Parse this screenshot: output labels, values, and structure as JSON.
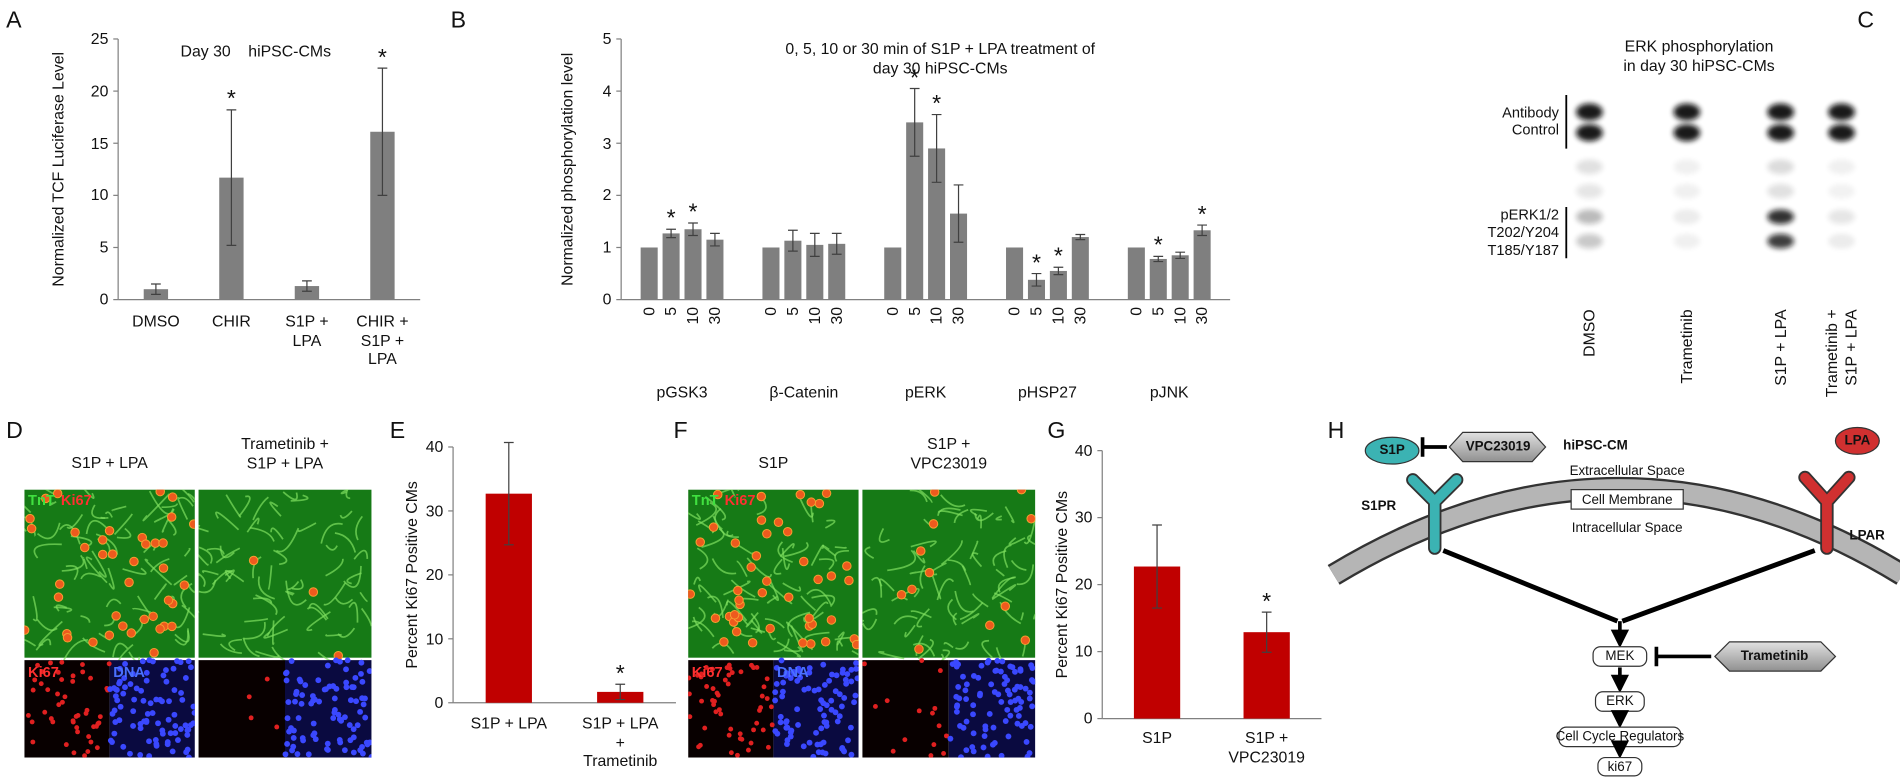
{
  "panel_letters": [
    "A",
    "B",
    "C",
    "D",
    "E",
    "F",
    "G",
    "H"
  ],
  "chart_data": [
    {
      "type": "bar",
      "title": "Day 30    hiPSC-CMs",
      "y_label": "Normalized TCF Luciferase Level",
      "categories": [
        "DMSO",
        "CHIR",
        "S1P +\nLPA",
        "CHIR +\nS1P +\nLPA"
      ],
      "values": [
        1.0,
        11.7,
        1.3,
        16.1
      ],
      "errors": [
        0.5,
        6.5,
        0.5,
        6.1
      ],
      "markers": [
        null,
        "*",
        null,
        "*"
      ],
      "color": "#7f7f7f",
      "ylim": [
        0,
        25
      ],
      "yticks": [
        0,
        5,
        10,
        15,
        20,
        25
      ]
    },
    {
      "type": "grouped_bar",
      "title": "0, 5, 10 or 30 min of S1P + LPA treatment of\nday 30 hiPSC-CMs",
      "y_label": "Normalized phosphorylation level",
      "bar_labels": [
        "0",
        "5",
        "10",
        "30"
      ],
      "groups": [
        {
          "name": "pGSK3",
          "values": [
            1.0,
            1.27,
            1.35,
            1.15
          ],
          "errors": [
            0,
            0.08,
            0.12,
            0.12
          ],
          "markers": [
            null,
            "*",
            "*",
            null
          ]
        },
        {
          "name": "β-Catenin",
          "values": [
            1.0,
            1.13,
            1.05,
            1.07
          ],
          "errors": [
            0,
            0.2,
            0.22,
            0.2
          ],
          "markers": [
            null,
            null,
            null,
            null
          ]
        },
        {
          "name": "pERK",
          "values": [
            1.0,
            3.4,
            2.9,
            1.65
          ],
          "errors": [
            0,
            0.65,
            0.65,
            0.55
          ],
          "markers": [
            null,
            "*",
            "*",
            null
          ]
        },
        {
          "name": "pHSP27",
          "values": [
            1.0,
            0.38,
            0.55,
            1.2
          ],
          "errors": [
            0,
            0.12,
            0.07,
            0.05
          ],
          "markers": [
            null,
            "*",
            "*",
            null
          ]
        },
        {
          "name": "pJNK",
          "values": [
            1.0,
            0.78,
            0.85,
            1.33
          ],
          "errors": [
            0,
            0.05,
            0.06,
            0.1
          ],
          "markers": [
            null,
            "*",
            null,
            "*"
          ]
        }
      ],
      "color": "#7f7f7f",
      "ylim": [
        0,
        5
      ],
      "yticks": [
        0,
        1,
        2,
        3,
        4,
        5
      ]
    },
    {
      "type": "bar",
      "y_label": "Percent Ki67 Positive CMs",
      "categories": [
        "S1P + LPA",
        "S1P + LPA\n+\nTrametinib"
      ],
      "values": [
        32.7,
        1.7
      ],
      "errors": [
        8.0,
        1.2
      ],
      "markers": [
        null,
        "*"
      ],
      "color": "#c00000",
      "ylim": [
        0,
        40
      ],
      "yticks": [
        0,
        10,
        20,
        30,
        40
      ]
    },
    {
      "type": "bar",
      "y_label": "Percent Ki67 Positive CMs",
      "categories": [
        "S1P",
        "S1P +\nVPC23019"
      ],
      "values": [
        22.7,
        12.9
      ],
      "errors": [
        6.2,
        3.0
      ],
      "markers": [
        null,
        "*"
      ],
      "color": "#c00000",
      "ylim": [
        0,
        40
      ],
      "yticks": [
        0,
        10,
        20,
        30,
        40
      ]
    }
  ],
  "blot": {
    "title": "ERK phosphorylation\nin day 30 hiPSC-CMs",
    "row_labels": [
      "Antibody\nControl",
      "pERK1/2\nT202/Y204\nT185/Y187"
    ],
    "lanes": [
      "DMSO",
      "Trametinib",
      "S1P + LPA",
      "Trametinib +\nS1P + LPA"
    ]
  },
  "micrographs": [
    {
      "columns": [
        "S1P + LPA",
        "Trametinib +\nS1P + LPA"
      ],
      "stains": [
        "TnT",
        "Ki67",
        "Ki67",
        "DNA"
      ]
    },
    {
      "columns": [
        "S1P",
        "S1P +\nVPC23019"
      ],
      "stains": [
        "TnT",
        "Ki67",
        "Ki67",
        "DNA"
      ]
    }
  ],
  "diagram": {
    "cell": "hiPSC-CM",
    "extracellular": "Extracellular Space",
    "membrane": "Cell Membrane",
    "intracellular": "Intracellular Space",
    "ligands": [
      "S1P",
      "LPA"
    ],
    "receptors": [
      "S1PR",
      "LPAR"
    ],
    "inhibitors": [
      "VPC23019",
      "Trametinib"
    ],
    "pathway": [
      "MEK",
      "ERK",
      "Cell Cycle Regulators",
      "ki67"
    ]
  }
}
